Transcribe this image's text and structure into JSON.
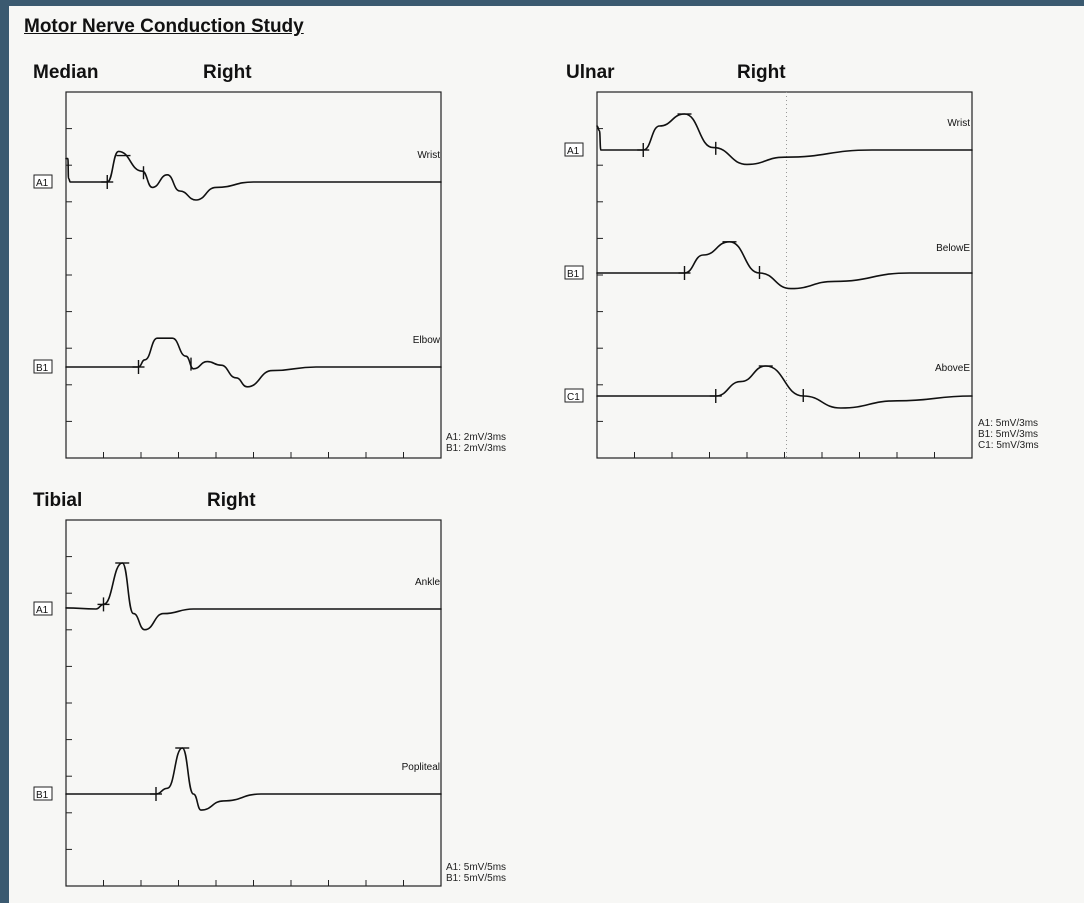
{
  "study_title": "Motor Nerve Conduction Study",
  "panels": [
    {
      "nerve": "Median",
      "side": "Right",
      "scale_lines": [
        "A1: 2mV/3ms",
        "B1: 2mV/3ms"
      ]
    },
    {
      "nerve": "Ulnar",
      "side": "Right",
      "scale_lines": [
        "A1: 5mV/3ms",
        "B1: 5mV/3ms",
        "C1: 5mV/3ms"
      ]
    },
    {
      "nerve": "Tibial",
      "side": "Right",
      "scale_lines": [
        "A1: 5mV/5ms",
        "B1: 5mV/5ms"
      ]
    }
  ],
  "chart_data": [
    {
      "type": "line",
      "title": "Median",
      "side": "Right",
      "x_unit": "ms",
      "x_divisions": 10,
      "ms_per_division": 3,
      "mv_per_division": 2,
      "grid": false,
      "series": [
        {
          "name": "A1",
          "site": "Wrist",
          "points": [
            [
              0,
              1.3
            ],
            [
              0.15,
              1.3
            ],
            [
              0.2,
              0.2
            ],
            [
              0.35,
              0
            ],
            [
              3.3,
              0
            ],
            [
              4.2,
              1.7
            ],
            [
              6.1,
              0.6
            ],
            [
              6.9,
              -0.3
            ],
            [
              8.1,
              0.4
            ],
            [
              9.1,
              -0.5
            ],
            [
              10.4,
              -1.0
            ],
            [
              12,
              -0.3
            ],
            [
              15,
              0
            ],
            [
              30,
              0
            ]
          ],
          "markers": [
            {
              "x": 3.3,
              "kind": "cross"
            },
            {
              "x": 4.6,
              "kind": "peak"
            },
            {
              "x": 6.2,
              "kind": "tick"
            }
          ]
        },
        {
          "name": "B1",
          "site": "Elbow",
          "points": [
            [
              0,
              0
            ],
            [
              5.8,
              0
            ],
            [
              6.3,
              0.4
            ],
            [
              7.3,
              1.6
            ],
            [
              8.5,
              1.6
            ],
            [
              9.6,
              0.6
            ],
            [
              10.2,
              -0.1
            ],
            [
              11.3,
              0.3
            ],
            [
              12.4,
              0.1
            ],
            [
              13.6,
              -0.6
            ],
            [
              14.5,
              -1.1
            ],
            [
              16.5,
              -0.2
            ],
            [
              20,
              0
            ],
            [
              30,
              0
            ]
          ],
          "markers": [
            {
              "x": 5.8,
              "kind": "cross"
            },
            {
              "x": 7.8,
              "kind": "peak"
            },
            {
              "x": 10,
              "kind": "tick"
            }
          ]
        }
      ]
    },
    {
      "type": "line",
      "title": "Ulnar",
      "side": "Right",
      "x_unit": "ms",
      "x_divisions": 10,
      "ms_per_division": 3,
      "mv_per_division": 5,
      "grid": false,
      "series": [
        {
          "name": "A1",
          "site": "Wrist",
          "points": [
            [
              0,
              2
            ],
            [
              0.2,
              1.6
            ],
            [
              0.3,
              0
            ],
            [
              3.7,
              0
            ],
            [
              5.0,
              2.0
            ],
            [
              7.0,
              3.0
            ],
            [
              9.3,
              0.2
            ],
            [
              12.0,
              -1.2
            ],
            [
              15.0,
              -0.6
            ],
            [
              22.0,
              0
            ],
            [
              30,
              0
            ]
          ],
          "markers": [
            {
              "x": 3.7,
              "kind": "cross"
            },
            {
              "x": 7.0,
              "kind": "peak"
            },
            {
              "x": 9.5,
              "kind": "tick"
            }
          ]
        },
        {
          "name": "B1",
          "site": "BelowE",
          "points": [
            [
              0,
              0
            ],
            [
              7.0,
              0
            ],
            [
              8.5,
              1.5
            ],
            [
              10.6,
              2.6
            ],
            [
              13.0,
              0
            ],
            [
              15.5,
              -1.3
            ],
            [
              19,
              -0.7
            ],
            [
              25,
              0
            ],
            [
              30,
              0
            ]
          ],
          "markers": [
            {
              "x": 7.0,
              "kind": "cross"
            },
            {
              "x": 10.6,
              "kind": "peak"
            },
            {
              "x": 13.0,
              "kind": "tick"
            }
          ]
        },
        {
          "name": "C1",
          "site": "AboveE",
          "points": [
            [
              0,
              0
            ],
            [
              9.5,
              0
            ],
            [
              11.5,
              1.2
            ],
            [
              13.5,
              2.5
            ],
            [
              16.5,
              0
            ],
            [
              19.5,
              -1.0
            ],
            [
              24,
              -0.4
            ],
            [
              30,
              0
            ]
          ],
          "markers": [
            {
              "x": 9.5,
              "kind": "cross"
            },
            {
              "x": 13.5,
              "kind": "peak"
            },
            {
              "x": 16.5,
              "kind": "tick"
            }
          ]
        }
      ]
    },
    {
      "type": "line",
      "title": "Tibial",
      "side": "Right",
      "x_unit": "ms",
      "x_divisions": 10,
      "ms_per_division": 5,
      "mv_per_division": 5,
      "grid": false,
      "series": [
        {
          "name": "A1",
          "site": "Ankle",
          "points": [
            [
              0,
              0.1
            ],
            [
              4.0,
              0
            ],
            [
              5.0,
              0.4
            ],
            [
              7.5,
              4.0
            ],
            [
              9.0,
              -0.4
            ],
            [
              10.5,
              -1.8
            ],
            [
              13.0,
              -0.4
            ],
            [
              17,
              0
            ],
            [
              50,
              0
            ]
          ],
          "markers": [
            {
              "x": 5.0,
              "kind": "cross"
            },
            {
              "x": 7.5,
              "kind": "peak"
            }
          ]
        },
        {
          "name": "B1",
          "site": "Popliteal",
          "points": [
            [
              0,
              0
            ],
            [
              12.0,
              0
            ],
            [
              13.5,
              0.5
            ],
            [
              15.5,
              4.0
            ],
            [
              17.0,
              0
            ],
            [
              18.0,
              -1.4
            ],
            [
              21.0,
              -0.6
            ],
            [
              26,
              0
            ],
            [
              50,
              0
            ]
          ],
          "markers": [
            {
              "x": 12.0,
              "kind": "cross"
            },
            {
              "x": 15.5,
              "kind": "peak"
            }
          ]
        }
      ]
    }
  ]
}
